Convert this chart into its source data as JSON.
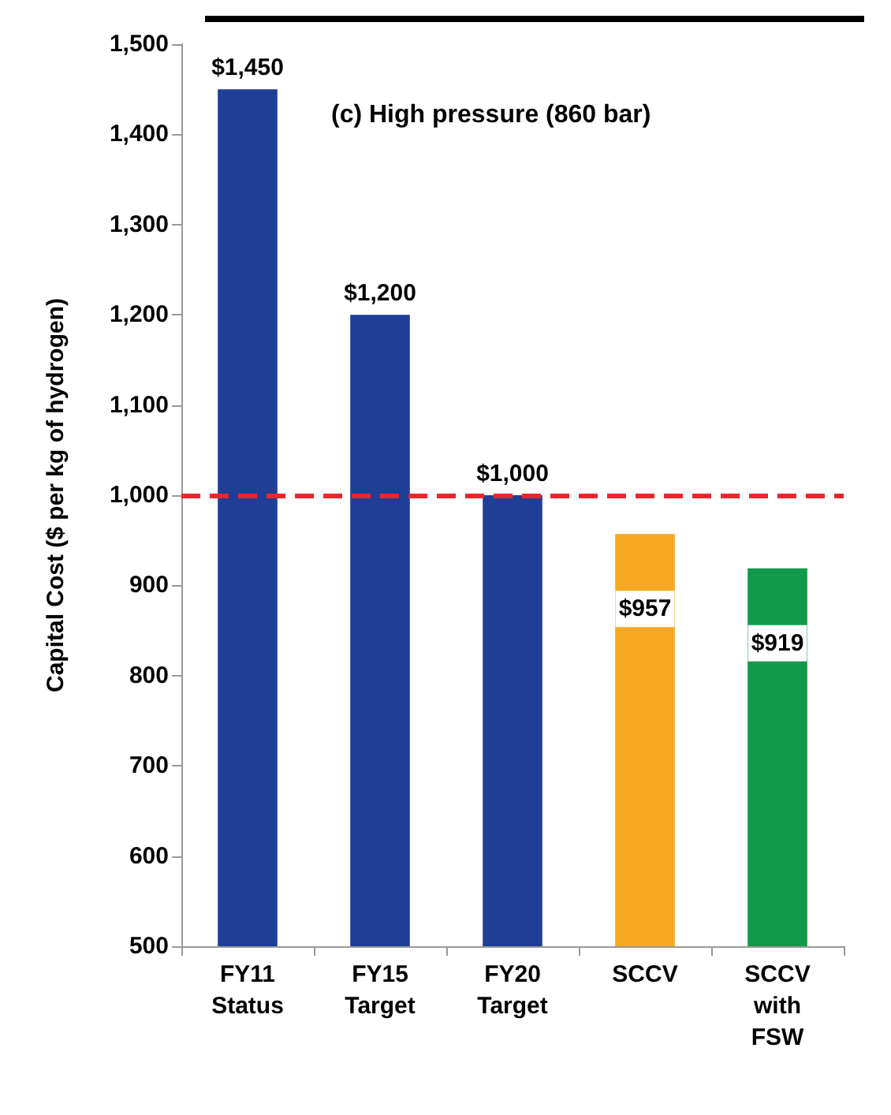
{
  "chart_data": {
    "type": "bar",
    "title": "(c) High pressure (860 bar)",
    "ylabel": "Capital Cost ($ per kg of hydrogen)",
    "categories": [
      "FY11\nStatus",
      "FY15\nTarget",
      "FY20\nTarget",
      "SCCV",
      "SCCV\nwith\nFSW"
    ],
    "values": [
      1450,
      1200,
      1000,
      957,
      919
    ],
    "colors": [
      "#1f3f97",
      "#1f3f97",
      "#1f3f97",
      "#f7a823",
      "#12994a"
    ],
    "value_labels": [
      "$1,450",
      "$1,200",
      "$1,000",
      "$957",
      "$919"
    ],
    "ylim": [
      500,
      1500
    ],
    "yticks": [
      500,
      600,
      700,
      800,
      900,
      {
        "value": 1000,
        "label": "1,000"
      },
      {
        "value": 1100,
        "label": "1,100"
      },
      {
        "value": 1200,
        "label": "1,200"
      },
      {
        "value": 1300,
        "label": "1,300"
      },
      {
        "value": 1400,
        "label": "1,400"
      },
      {
        "value": 1500,
        "label": "1,500"
      }
    ],
    "ref_lines": [
      {
        "axis": "y",
        "value": 1000,
        "color": "#e8262b",
        "line_style": "dashed"
      }
    ],
    "grid": false
  }
}
